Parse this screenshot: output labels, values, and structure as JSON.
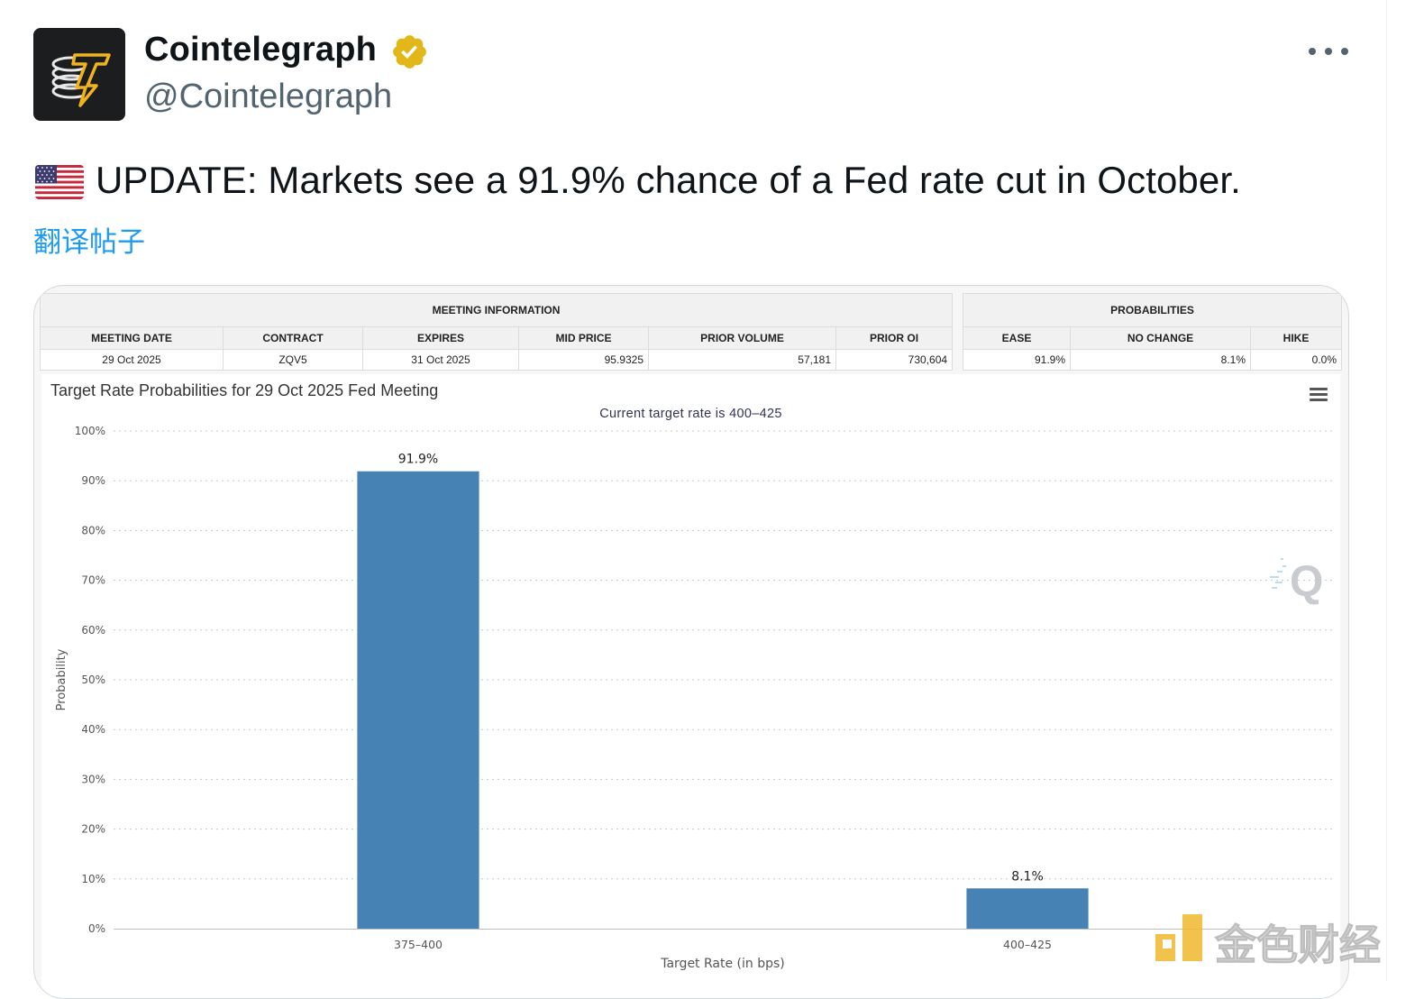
{
  "tweet": {
    "author": {
      "display_name": "Cointelegraph",
      "handle": "@Cointelegraph",
      "verified": true,
      "avatar_icon": "cointelegraph-logo"
    },
    "text": "UPDATE: Markets see a 91.9% chance of a Fed rate cut in October.",
    "flag_icon": "us-flag-icon",
    "translate_label": "翻译帖子",
    "more_icon": "more-horizontal-icon"
  },
  "media": {
    "meeting_info": {
      "header": "MEETING INFORMATION",
      "columns": [
        "MEETING DATE",
        "CONTRACT",
        "EXPIRES",
        "MID PRICE",
        "PRIOR VOLUME",
        "PRIOR OI"
      ],
      "row": [
        "29 Oct 2025",
        "ZQV5",
        "31 Oct 2025",
        "95.9325",
        "57,181",
        "730,604"
      ]
    },
    "probabilities": {
      "header": "PROBABILITIES",
      "columns": [
        "EASE",
        "NO CHANGE",
        "HIKE"
      ],
      "row": [
        "91.9%",
        "8.1%",
        "0.0%"
      ]
    },
    "watermark_jinse": "金色财经"
  },
  "chart_data": {
    "type": "bar",
    "title": "Target Rate Probabilities for 29 Oct 2025 Fed Meeting",
    "subtitle": "Current target rate is 400–425",
    "xlabel": "Target Rate (in bps)",
    "ylabel": "Probability",
    "categories": [
      "375–400",
      "400–425"
    ],
    "values": [
      91.9,
      8.1
    ],
    "data_labels": [
      "91.9%",
      "8.1%"
    ],
    "ylim": [
      0,
      100
    ],
    "yticks": [
      "0%",
      "10%",
      "20%",
      "30%",
      "40%",
      "50%",
      "60%",
      "70%",
      "80%",
      "90%",
      "100%"
    ],
    "grid": true,
    "bar_color": "#4682b4"
  },
  "colors": {
    "accent_link": "#1d9bf0",
    "handle": "#536471",
    "verified_gold": "#e2b719"
  }
}
